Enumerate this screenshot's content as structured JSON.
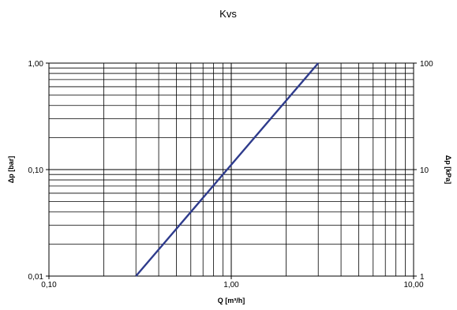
{
  "chart_data": {
    "type": "line",
    "title": "Kvs",
    "xlabel": "Q [m³/h]",
    "ylabel": "Δp [bar]",
    "ylabel_right": "Δp [kPa]",
    "x_scale": "log",
    "y_scale": "log",
    "xlim": [
      0.1,
      10
    ],
    "ylim": [
      0.01,
      1
    ],
    "x_tick_values": [
      0.1,
      1,
      10
    ],
    "x_tick_labels": [
      "0,10",
      "1,00",
      "10,00"
    ],
    "y_tick_values": [
      0.01,
      0.1,
      1
    ],
    "y_tick_labels": [
      "0,01",
      "0,10",
      "1,00"
    ],
    "y2_tick_values": [
      0.01,
      0.1,
      1
    ],
    "y2_tick_labels": [
      "1",
      "10",
      "100"
    ],
    "grid": true,
    "line_color": "#2e3b8c",
    "grid_color": "#000000",
    "series": [
      {
        "x": [
          0.3,
          3.0
        ],
        "y": [
          0.01,
          1.0
        ]
      }
    ]
  }
}
